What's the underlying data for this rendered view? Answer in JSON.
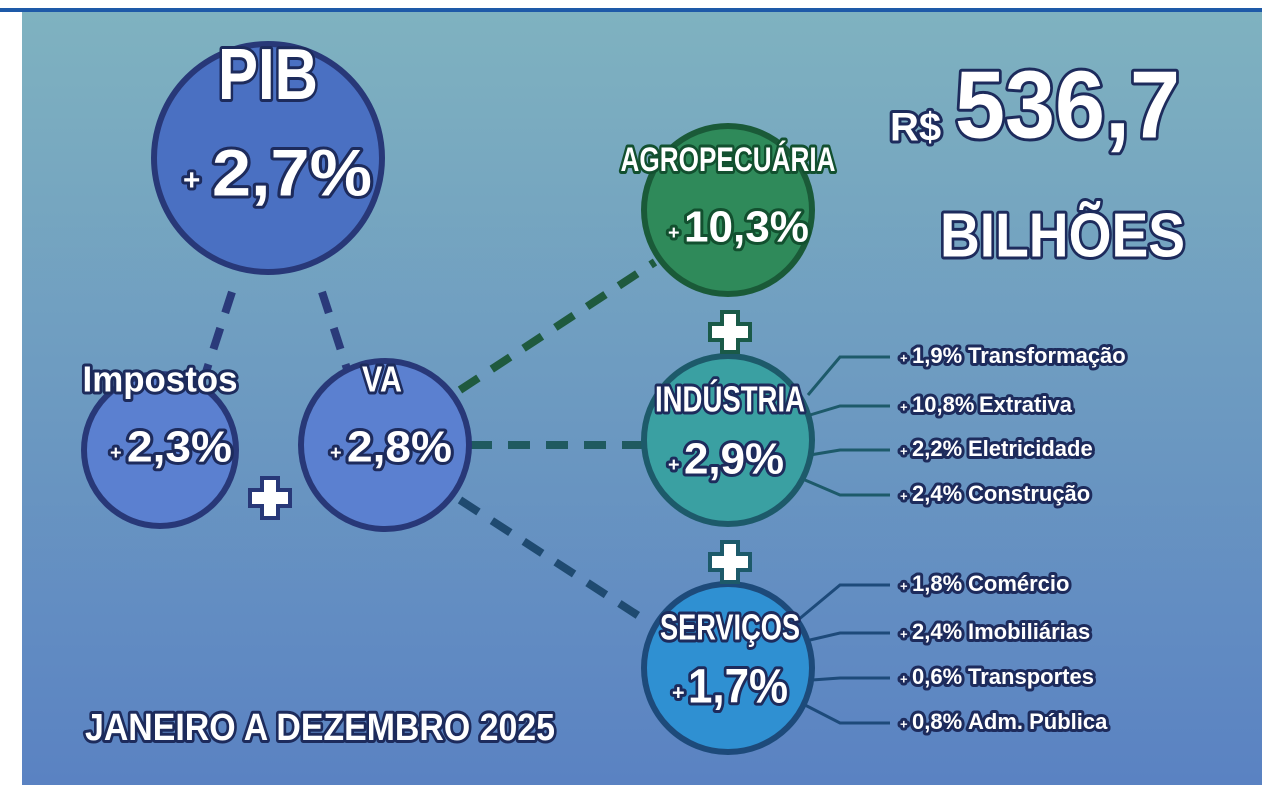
{
  "headline": {
    "prefix": "R$",
    "amount": "536,7",
    "unit": "BILHÕES"
  },
  "period": "JANEIRO A DEZEMBRO 2025",
  "nodes": [
    {
      "label": "PIB",
      "sign": "+",
      "value": "2,7%"
    },
    {
      "label": "Impostos",
      "sign": "+",
      "value": "2,3%"
    },
    {
      "label": "VA",
      "sign": "+",
      "value": "2,8%"
    },
    {
      "label": "AGROPECUÁRIA",
      "sign": "+",
      "value": "10,3%"
    },
    {
      "label": "INDÚSTRIA",
      "sign": "+",
      "value": "2,9%"
    },
    {
      "label": "SERVIÇOS",
      "sign": "+",
      "value": "1,7%"
    }
  ],
  "industria_items": [
    {
      "sign": "+",
      "change": "1,9%",
      "name": "Transformação"
    },
    {
      "sign": "+",
      "change": "10,8%",
      "name": "Extrativa"
    },
    {
      "sign": "+",
      "change": "2,2%",
      "name": "Eletricidade"
    },
    {
      "sign": "+",
      "change": "2,4%",
      "name": "Construção"
    }
  ],
  "servicos_items": [
    {
      "sign": "+",
      "change": "1,8%",
      "name": "Comércio"
    },
    {
      "sign": "+",
      "change": "2,4%",
      "name": "Imobiliárias"
    },
    {
      "sign": "+",
      "change": "0,6%",
      "name": "Transportes"
    },
    {
      "sign": "+",
      "change": "0,8%",
      "name": "Adm. Pública"
    }
  ]
}
